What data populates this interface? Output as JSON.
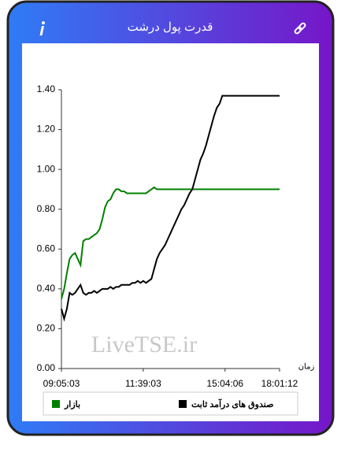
{
  "header": {
    "title": "قدرت پول درشت"
  },
  "chart_data": {
    "type": "line",
    "watermark": "LiveTSE.ir",
    "x_label": "زمان",
    "categories": [
      "09:05:03",
      null,
      null,
      null,
      null,
      null,
      null,
      null,
      null,
      null,
      null,
      null,
      null,
      null,
      null,
      null,
      null,
      null,
      null,
      null,
      null,
      null,
      null,
      null,
      null,
      null,
      null,
      null,
      null,
      null,
      "11:39:03",
      null,
      null,
      null,
      null,
      null,
      null,
      null,
      null,
      null,
      null,
      null,
      null,
      null,
      null,
      null,
      null,
      null,
      null,
      null,
      null,
      null,
      null,
      null,
      null,
      null,
      null,
      null,
      null,
      null,
      "15:04:06",
      null,
      null,
      null,
      null,
      null,
      null,
      null,
      null,
      null,
      null,
      null,
      null,
      null,
      null,
      null,
      null,
      null,
      null,
      null,
      "18:01:12"
    ],
    "series": [
      {
        "name": "بازار",
        "color": "#008000",
        "values": [
          0.35,
          0.4,
          0.48,
          0.55,
          0.57,
          0.58,
          0.55,
          0.52,
          0.64,
          0.65,
          0.65,
          0.66,
          0.67,
          0.68,
          0.7,
          0.75,
          0.81,
          0.84,
          0.85,
          0.88,
          0.9,
          0.9,
          0.89,
          0.89,
          0.88,
          0.88,
          0.88,
          0.88,
          0.88,
          0.88,
          0.88,
          0.88,
          0.89,
          0.9,
          0.91,
          0.9,
          0.9,
          0.9,
          0.9,
          0.9,
          0.9,
          0.9,
          0.9,
          0.9,
          0.9,
          0.9,
          0.9,
          0.9,
          0.9,
          0.9,
          0.9,
          0.9,
          0.9,
          0.9,
          0.9,
          0.9,
          0.9,
          0.9,
          0.9,
          0.9,
          0.9,
          0.9,
          0.9,
          0.9,
          0.9,
          0.9,
          0.9,
          0.9,
          0.9,
          0.9,
          0.9,
          0.9,
          0.9,
          0.9,
          0.9,
          0.9,
          0.9,
          0.9,
          0.9,
          0.9,
          0.9
        ]
      },
      {
        "name": "صندوق های درآمد ثابت",
        "color": "#000000",
        "values": [
          0.3,
          0.25,
          0.3,
          0.38,
          0.37,
          0.38,
          0.4,
          0.42,
          0.38,
          0.37,
          0.38,
          0.38,
          0.39,
          0.38,
          0.39,
          0.4,
          0.4,
          0.4,
          0.41,
          0.4,
          0.41,
          0.41,
          0.42,
          0.42,
          0.42,
          0.42,
          0.43,
          0.43,
          0.44,
          0.43,
          0.44,
          0.43,
          0.44,
          0.45,
          0.5,
          0.55,
          0.58,
          0.6,
          0.62,
          0.65,
          0.68,
          0.71,
          0.74,
          0.77,
          0.8,
          0.82,
          0.85,
          0.88,
          0.9,
          0.95,
          1.0,
          1.05,
          1.08,
          1.12,
          1.17,
          1.22,
          1.27,
          1.31,
          1.33,
          1.37,
          1.37,
          1.37,
          1.37,
          1.37,
          1.37,
          1.37,
          1.37,
          1.37,
          1.37,
          1.37,
          1.37,
          1.37,
          1.37,
          1.37,
          1.37,
          1.37,
          1.37,
          1.37,
          1.37,
          1.37,
          1.37
        ]
      }
    ],
    "ylim": [
      0,
      1.4
    ],
    "yticks": [
      {
        "value": 0,
        "label": "0.00"
      },
      {
        "value": 0.2,
        "label": "0.20"
      },
      {
        "value": 0.4,
        "label": "0.40"
      },
      {
        "value": 0.6,
        "label": "0.60"
      },
      {
        "value": 0.8,
        "label": "0.80"
      },
      {
        "value": 1.0,
        "label": "1.00"
      },
      {
        "value": 1.2,
        "label": "1.20"
      },
      {
        "value": 1.4,
        "label": "1.40"
      }
    ],
    "legend": "bottom"
  }
}
